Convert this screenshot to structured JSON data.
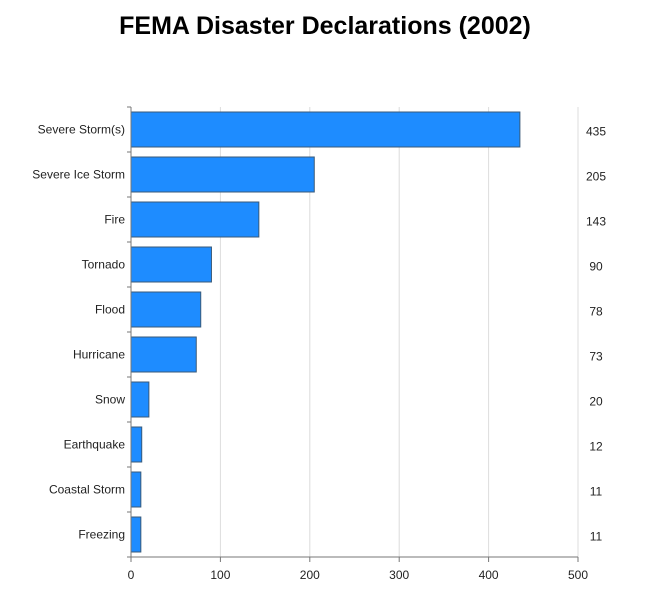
{
  "chart_data": {
    "type": "bar",
    "orientation": "horizontal",
    "title": "FEMA Disaster Declarations (2002)",
    "xlabel": "",
    "ylabel": "",
    "categories": [
      "Severe Storm(s)",
      "Severe Ice Storm",
      "Fire",
      "Tornado",
      "Flood",
      "Hurricane",
      "Snow",
      "Earthquake",
      "Coastal Storm",
      "Freezing"
    ],
    "values": [
      435,
      205,
      143,
      90,
      78,
      73,
      20,
      12,
      11,
      11
    ],
    "value_labels": [
      "435",
      "205",
      "143",
      "90",
      "78",
      "73",
      "20",
      "12",
      "11",
      "11"
    ],
    "xlim": [
      0,
      500
    ],
    "xticks": [
      0,
      100,
      200,
      300,
      400,
      500
    ],
    "grid": true,
    "legend": "none",
    "bar_color": "#1e8cff",
    "bar_edge_color": "#3a5a78"
  }
}
